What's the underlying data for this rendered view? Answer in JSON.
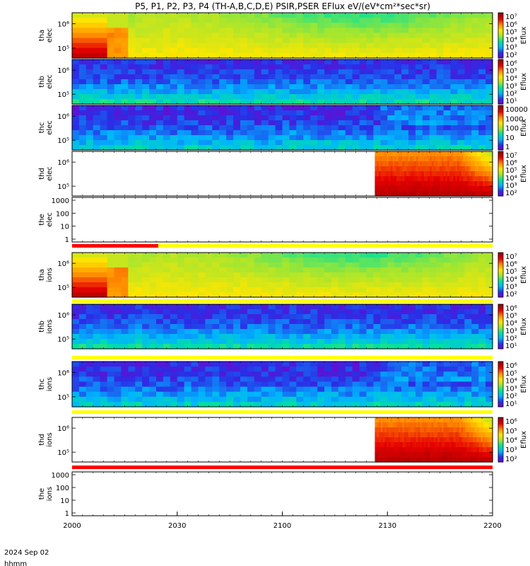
{
  "title": "P5, P1, P2, P3, P4 (TH-A,B,C,D,E) PSIR,PSER EFlux eV/(eV*cm²*sec*sr)",
  "footer": {
    "time_label": "hhmm",
    "date_label": "2024 Sep 02"
  },
  "chart_data": {
    "type": "heatmap",
    "x_axis": {
      "start": "2000",
      "end": "2200",
      "tick_labels": [
        "2000",
        "2030",
        "2100",
        "2130",
        "2200"
      ]
    },
    "colorbar_label": "Eflux",
    "colors": {
      "spectrogram_scale": [
        "#7f00c8",
        "#2a2ee6",
        "#00b4ff",
        "#00e1a0",
        "#a0e632",
        "#ffe600",
        "#ff8c00",
        "#e60000",
        "#960000"
      ],
      "bar_yellow": "#ffff00",
      "bar_red": "#ff0000"
    },
    "panels": [
      {
        "probe": "thd",
        "species": "elec",
        "yticks": [
          "10⁶",
          "10⁵"
        ],
        "colorbar": [
          "10⁷",
          "10⁶",
          "10⁵",
          "10⁴",
          "10³",
          "10²"
        ],
        "coverage": "partial",
        "data_start_fraction": 0.72
      },
      {
        "probe": "the",
        "species": "elec",
        "yticks": [
          "1000",
          "100",
          "10",
          "1"
        ],
        "colorbar": [],
        "coverage": "none"
      },
      {
        "probe": "thc",
        "species": "ions",
        "yticks": [
          "10⁶",
          "10⁵"
        ],
        "colorbar": [
          "10⁶",
          "10⁵",
          "10⁴",
          "10³",
          "10²",
          "10¹"
        ],
        "coverage": "full"
      },
      {
        "probe": "thd",
        "species": "ions",
        "yticks": [
          "10⁶",
          "10⁵"
        ],
        "colorbar": [
          "10⁶",
          "10⁵",
          "10⁴",
          "10³",
          "10²"
        ],
        "coverage": "partial",
        "data_start_fraction": 0.72
      },
      {
        "probe": "the",
        "species": "ions",
        "yticks": [
          "1000",
          "100",
          "10",
          "1"
        ],
        "colorbar": [],
        "coverage": "none"
      },
      {
        "probe": "tha",
        "species": "elec",
        "yticks": [
          "10⁶",
          "10⁵"
        ],
        "colorbar": [
          "10⁷",
          "10⁶",
          "10⁵",
          "10⁴",
          "10³",
          "10²"
        ],
        "coverage": "full"
      },
      {
        "probe": "thb",
        "species": "elec",
        "yticks": [
          "10⁶",
          "10⁵"
        ],
        "colorbar": [
          "10⁶",
          "10⁵",
          "10⁴",
          "10³",
          "10²",
          "10¹"
        ],
        "coverage": "full"
      },
      {
        "probe": "thc",
        "species": "elec",
        "yticks": [
          "10⁶",
          "10⁵"
        ],
        "colorbar": [
          "10000",
          "1000",
          "100",
          "10",
          "1"
        ],
        "coverage": "full"
      },
      {
        "probe": "tha",
        "species": "ions",
        "yticks": [
          "10⁶",
          "10⁵"
        ],
        "colorbar": [
          "10⁷",
          "10⁶",
          "10⁵",
          "10⁴",
          "10³",
          "10²"
        ],
        "coverage": "full"
      },
      {
        "probe": "thb",
        "species": "ions",
        "yticks": [
          "10⁶",
          "10⁵"
        ],
        "colorbar": [
          "10⁶",
          "10⁵",
          "10⁴",
          "10³",
          "10²",
          "10¹"
        ],
        "coverage": "full"
      }
    ]
  }
}
